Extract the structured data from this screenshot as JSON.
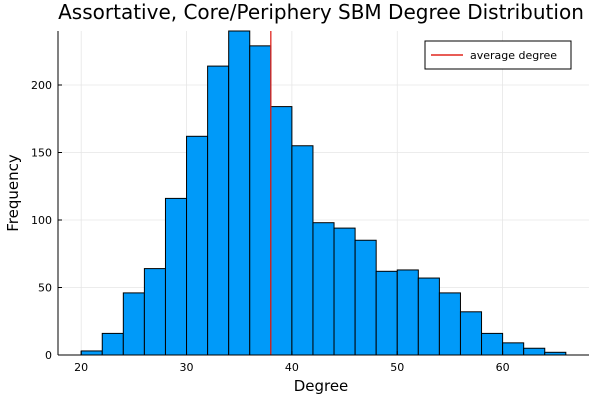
{
  "chart_data": {
    "type": "bar",
    "title": "Assortative, Core/Periphery SBM Degree Distribution",
    "xlabel": "Degree",
    "ylabel": "Frequency",
    "xlim": [
      17.8,
      68.2
    ],
    "ylim": [
      0,
      240
    ],
    "xticks": [
      20,
      30,
      40,
      50,
      60
    ],
    "yticks": [
      0,
      50,
      100,
      150,
      200
    ],
    "grid": true,
    "legend_position": "top-right",
    "bar_color": "#009af9",
    "bin_width": 2,
    "bins": [
      {
        "start": 20,
        "count": 3
      },
      {
        "start": 22,
        "count": 16
      },
      {
        "start": 24,
        "count": 46
      },
      {
        "start": 26,
        "count": 64
      },
      {
        "start": 28,
        "count": 116
      },
      {
        "start": 30,
        "count": 162
      },
      {
        "start": 32,
        "count": 214
      },
      {
        "start": 34,
        "count": 241
      },
      {
        "start": 36,
        "count": 229
      },
      {
        "start": 38,
        "count": 184
      },
      {
        "start": 40,
        "count": 155
      },
      {
        "start": 42,
        "count": 98
      },
      {
        "start": 44,
        "count": 94
      },
      {
        "start": 46,
        "count": 85
      },
      {
        "start": 48,
        "count": 62
      },
      {
        "start": 50,
        "count": 63
      },
      {
        "start": 52,
        "count": 57
      },
      {
        "start": 54,
        "count": 46
      },
      {
        "start": 56,
        "count": 32
      },
      {
        "start": 58,
        "count": 16
      },
      {
        "start": 60,
        "count": 9
      },
      {
        "start": 62,
        "count": 5
      },
      {
        "start": 64,
        "count": 2
      }
    ],
    "average_degree": 38.0,
    "average_line_color": "#e0261f",
    "legend": [
      {
        "label": "average degree",
        "color": "#e0261f"
      }
    ]
  }
}
